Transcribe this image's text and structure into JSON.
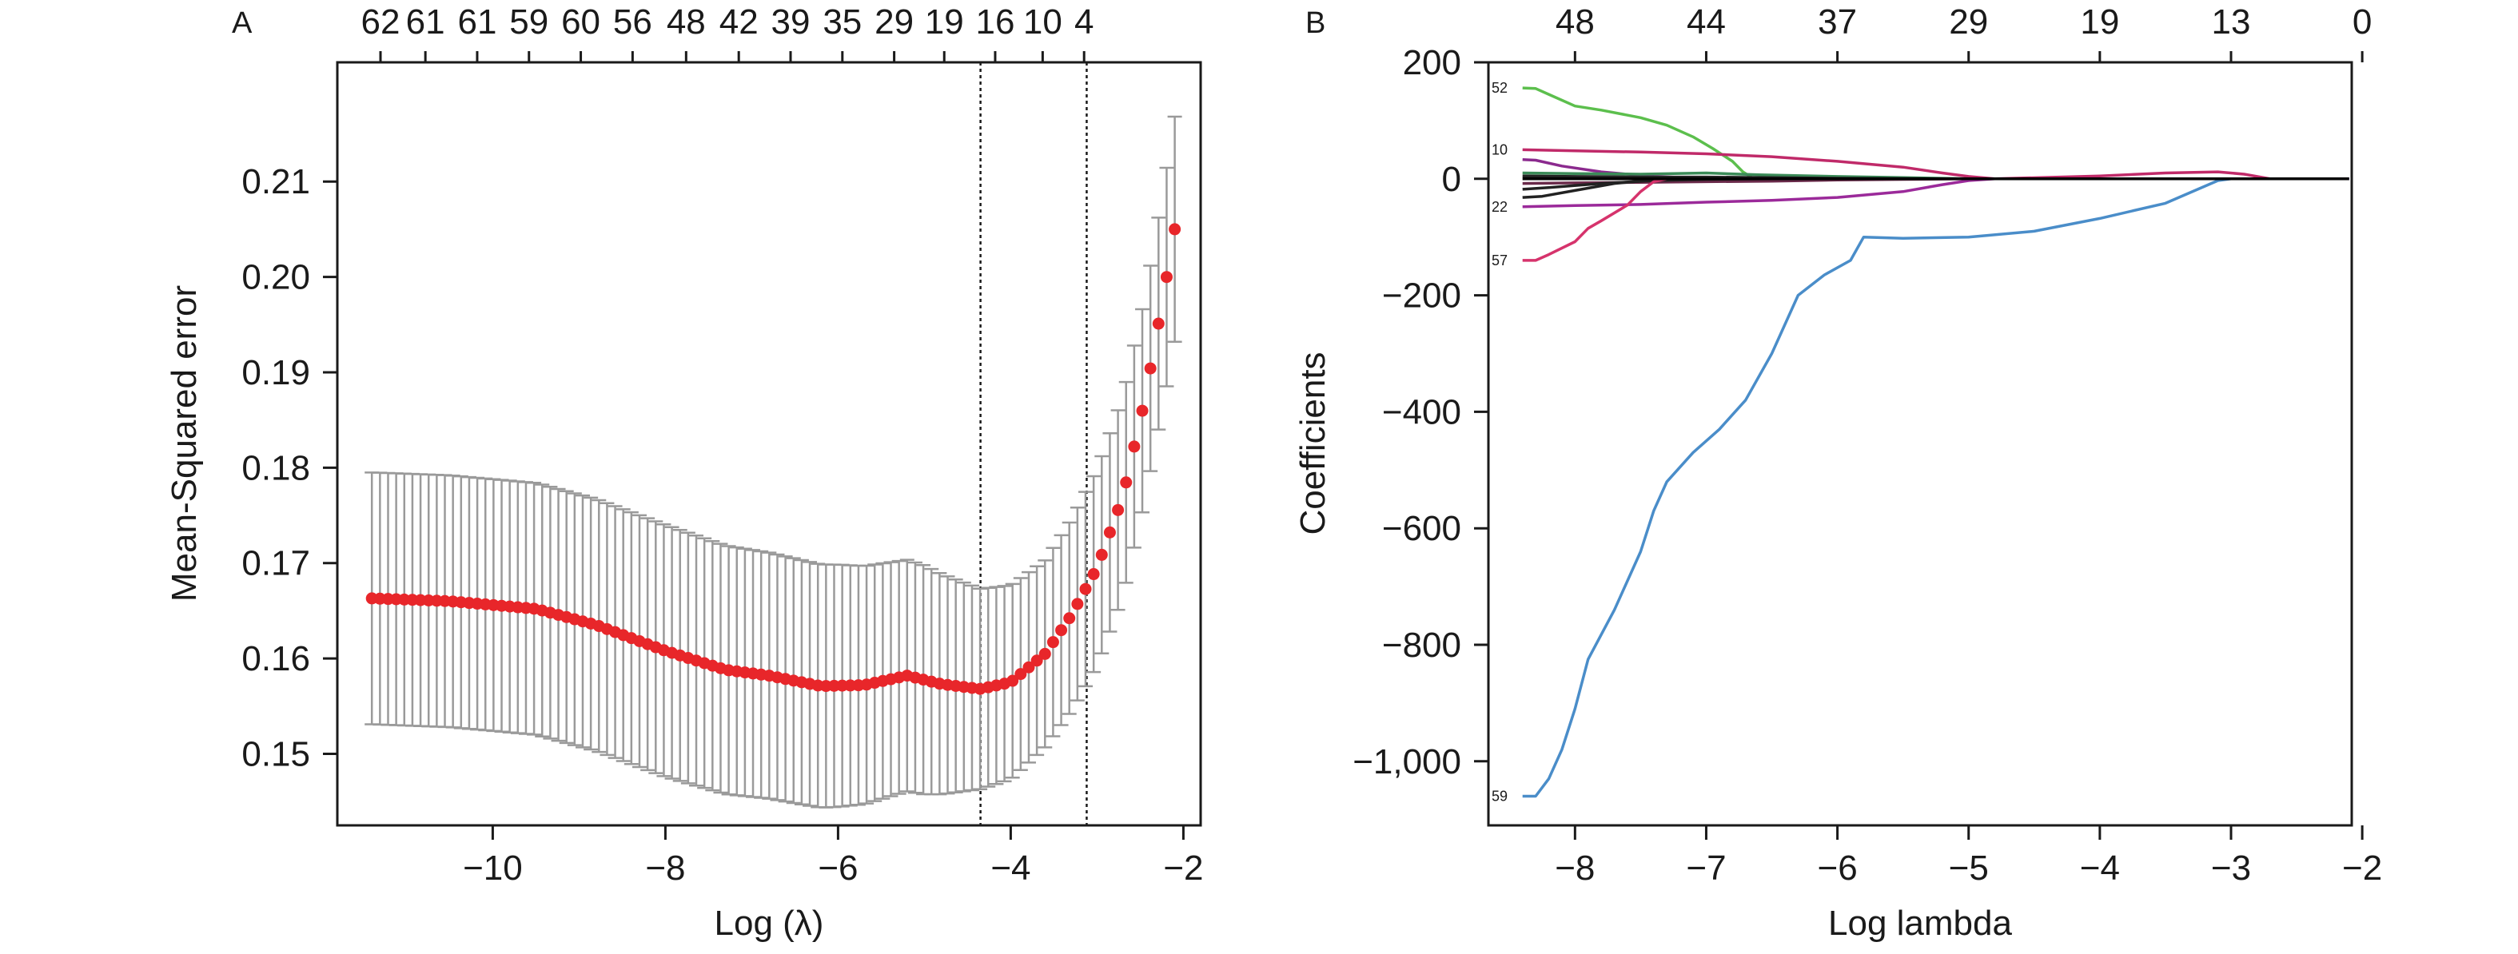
{
  "figure": {
    "colors": {
      "axis": "#1a1a1a",
      "errorbar": "#9a9a9a",
      "point": "#e8262a",
      "refline": "#1a1a1a"
    }
  },
  "chart_data": [
    {
      "panel": "A",
      "type": "scatter",
      "xlabel": "Log (λ)",
      "ylabel": "Mean-Squared error",
      "xlim": [
        -11.8,
        -1.8
      ],
      "ylim": [
        0.1425,
        0.2225
      ],
      "x_ticks": [
        -10,
        -8,
        -6,
        -4,
        -2
      ],
      "x_tick_labels": [
        "−10",
        "−8",
        "−6",
        "−4",
        "−2"
      ],
      "y_ticks": [
        0.15,
        0.16,
        0.17,
        0.18,
        0.19,
        0.2,
        0.21
      ],
      "y_tick_labels": [
        "0.15",
        "0.16",
        "0.17",
        "0.18",
        "0.19",
        "0.20",
        "0.21"
      ],
      "top_axis_ticks": [
        -11.3,
        -10.78,
        -10.18,
        -9.58,
        -8.98,
        -8.38,
        -7.76,
        -7.15,
        -6.55,
        -5.95,
        -5.35,
        -4.77,
        -4.18,
        -3.63,
        -3.15
      ],
      "top_axis_labels": [
        "62",
        "61",
        "61",
        "59",
        "60",
        "56",
        "48",
        "42",
        "39",
        "35",
        "29",
        "19",
        "16",
        "10",
        "4"
      ],
      "vlines": [
        -4.35,
        -3.12
      ],
      "grid": false,
      "x_start": -11.4,
      "x_end": -2.1,
      "n_points": 100,
      "curve_knots": [
        [
          -11.4,
          0.1663
        ],
        [
          -10.5,
          0.166
        ],
        [
          -9.5,
          0.1652
        ],
        [
          -8.8,
          0.1635
        ],
        [
          -8.0,
          0.1608
        ],
        [
          -7.3,
          0.1588
        ],
        [
          -6.8,
          0.1582
        ],
        [
          -6.2,
          0.1571
        ],
        [
          -5.7,
          0.1572
        ],
        [
          -5.2,
          0.1582
        ],
        [
          -4.8,
          0.1573
        ],
        [
          -4.35,
          0.1568
        ],
        [
          -4.0,
          0.1575
        ],
        [
          -3.6,
          0.1605
        ],
        [
          -3.3,
          0.1645
        ],
        [
          -3.0,
          0.1695
        ],
        [
          -2.7,
          0.177
        ],
        [
          -2.45,
          0.187
        ],
        [
          -2.25,
          0.197
        ],
        [
          -2.1,
          0.205
        ]
      ],
      "halfwidth_knots": [
        [
          -11.4,
          0.0132
        ],
        [
          -8.0,
          0.0132
        ],
        [
          -6.0,
          0.0127
        ],
        [
          -5.0,
          0.012
        ],
        [
          -4.35,
          0.0105
        ],
        [
          -3.6,
          0.0098
        ],
        [
          -3.0,
          0.0103
        ],
        [
          -2.4,
          0.0107
        ],
        [
          -2.1,
          0.0118
        ]
      ]
    },
    {
      "panel": "B",
      "type": "line",
      "xlabel": "Log lambda",
      "ylabel": "Coefficients",
      "xlim": [
        -8.66,
        -2.08
      ],
      "ylim": [
        -1110,
        200
      ],
      "x_ticks": [
        -8,
        -7,
        -6,
        -5,
        -4,
        -3,
        -2
      ],
      "x_tick_labels": [
        "−8",
        "−7",
        "−6",
        "−5",
        "−4",
        "−3",
        "−2"
      ],
      "y_ticks": [
        200,
        0,
        -200,
        -400,
        -600,
        -800,
        -1000
      ],
      "y_tick_labels": [
        "200",
        "0",
        "−200",
        "−400",
        "−600",
        "−800",
        "−1,000"
      ],
      "top_axis_ticks": [
        -8.0,
        -7.0,
        -6.0,
        -5.0,
        -4.0,
        -3.0,
        -2.0
      ],
      "top_axis_labels": [
        "48",
        "44",
        "37",
        "29",
        "19",
        "13",
        "0"
      ],
      "grid": false,
      "series": [
        {
          "name": "52",
          "color": "#5cbf4d",
          "points": [
            [
              -8.4,
              156
            ],
            [
              -8.3,
              155
            ],
            [
              -8.2,
              145
            ],
            [
              -8.0,
              125
            ],
            [
              -7.8,
              118
            ],
            [
              -7.5,
              105
            ],
            [
              -7.3,
              92
            ],
            [
              -7.1,
              72
            ],
            [
              -6.95,
              52
            ],
            [
              -6.8,
              30
            ],
            [
              -6.72,
              12
            ],
            [
              -6.65,
              2
            ]
          ]
        },
        {
          "name": "10",
          "color": "#c02a69",
          "points": [
            [
              -8.4,
              50
            ],
            [
              -8.0,
              48
            ],
            [
              -7.5,
              46
            ],
            [
              -7.0,
              43
            ],
            [
              -6.5,
              38
            ],
            [
              -6.0,
              30
            ],
            [
              -5.5,
              20
            ],
            [
              -5.2,
              10
            ],
            [
              -5.0,
              4
            ],
            [
              -4.8,
              0
            ],
            [
              -4.0,
              5
            ],
            [
              -3.5,
              10
            ],
            [
              -3.1,
              12
            ],
            [
              -2.9,
              8
            ],
            [
              -2.7,
              0
            ],
            [
              -2.1,
              0
            ]
          ]
        },
        {
          "name": "",
          "color": "#8b2a8e",
          "points": [
            [
              -8.4,
              33
            ],
            [
              -8.3,
              32
            ],
            [
              -8.1,
              22
            ],
            [
              -7.8,
              12
            ],
            [
              -7.4,
              4
            ],
            [
              -7.0,
              1
            ],
            [
              -6.6,
              0
            ],
            [
              -5.0,
              0
            ]
          ]
        },
        {
          "name": "",
          "color": "#3b8b58",
          "points": [
            [
              -8.4,
              10
            ],
            [
              -8.0,
              9
            ],
            [
              -7.5,
              8
            ],
            [
              -7.0,
              10
            ],
            [
              -6.6,
              7
            ],
            [
              -6.0,
              4
            ],
            [
              -5.5,
              2
            ],
            [
              -5.0,
              0
            ]
          ]
        },
        {
          "name": "",
          "color": "#222222",
          "points": [
            [
              -8.4,
              5
            ],
            [
              -8.0,
              4
            ],
            [
              -7.5,
              3
            ],
            [
              -7.0,
              3
            ],
            [
              -6.5,
              2
            ],
            [
              -6.0,
              1
            ],
            [
              -5.0,
              0
            ]
          ]
        },
        {
          "name": "",
          "color": "#6a2a4a",
          "points": [
            [
              -8.4,
              -8
            ],
            [
              -8.0,
              -7
            ],
            [
              -7.5,
              -6
            ],
            [
              -7.0,
              -5
            ],
            [
              -6.5,
              -4
            ],
            [
              -6.0,
              -2
            ],
            [
              -5.5,
              -1
            ],
            [
              -5.0,
              0
            ]
          ]
        },
        {
          "name": "",
          "color": "#222222",
          "points": [
            [
              -8.4,
              -18
            ],
            [
              -8.2,
              -15
            ],
            [
              -7.8,
              -8
            ],
            [
              -7.4,
              -3
            ],
            [
              -7.0,
              -1
            ],
            [
              -6.5,
              0
            ]
          ]
        },
        {
          "name": "",
          "color": "#222222",
          "points": [
            [
              -8.4,
              -32
            ],
            [
              -8.25,
              -30
            ],
            [
              -8.0,
              -20
            ],
            [
              -7.7,
              -8
            ],
            [
              -7.4,
              -2
            ],
            [
              -7.0,
              0
            ]
          ]
        },
        {
          "name": "22",
          "color": "#9b2a9a",
          "points": [
            [
              -8.4,
              -48
            ],
            [
              -8.0,
              -46
            ],
            [
              -7.5,
              -44
            ],
            [
              -7.0,
              -40
            ],
            [
              -6.5,
              -37
            ],
            [
              -6.0,
              -32
            ],
            [
              -5.5,
              -22
            ],
            [
              -5.2,
              -10
            ],
            [
              -5.0,
              -3
            ],
            [
              -4.8,
              0
            ],
            [
              -2.1,
              0
            ]
          ]
        },
        {
          "name": "57",
          "color": "#d6336c",
          "points": [
            [
              -8.4,
              -140
            ],
            [
              -8.3,
              -140
            ],
            [
              -8.2,
              -130
            ],
            [
              -8.0,
              -108
            ],
            [
              -7.9,
              -85
            ],
            [
              -7.8,
              -72
            ],
            [
              -7.6,
              -45
            ],
            [
              -7.5,
              -22
            ],
            [
              -7.4,
              -5
            ],
            [
              -7.3,
              0
            ],
            [
              -6.5,
              0
            ]
          ]
        },
        {
          "name": "59",
          "color": "#4a8dc9",
          "points": [
            [
              -8.4,
              -1060
            ],
            [
              -8.3,
              -1060
            ],
            [
              -8.2,
              -1030
            ],
            [
              -8.1,
              -980
            ],
            [
              -8.0,
              -910
            ],
            [
              -7.9,
              -825
            ],
            [
              -7.7,
              -740
            ],
            [
              -7.5,
              -640
            ],
            [
              -7.4,
              -570
            ],
            [
              -7.3,
              -520
            ],
            [
              -7.1,
              -470
            ],
            [
              -6.9,
              -430
            ],
            [
              -6.7,
              -380
            ],
            [
              -6.5,
              -300
            ],
            [
              -6.3,
              -200
            ],
            [
              -6.1,
              -165
            ],
            [
              -5.9,
              -140
            ],
            [
              -5.8,
              -100
            ],
            [
              -5.5,
              -102
            ],
            [
              -5.0,
              -100
            ],
            [
              -4.5,
              -90
            ],
            [
              -4.0,
              -68
            ],
            [
              -3.5,
              -42
            ],
            [
              -3.1,
              -3
            ],
            [
              -3.0,
              0
            ],
            [
              -2.1,
              0
            ]
          ]
        },
        {
          "name": "",
          "color": "#000000",
          "points": [
            [
              -8.4,
              0
            ],
            [
              -2.1,
              0
            ]
          ]
        }
      ]
    }
  ]
}
